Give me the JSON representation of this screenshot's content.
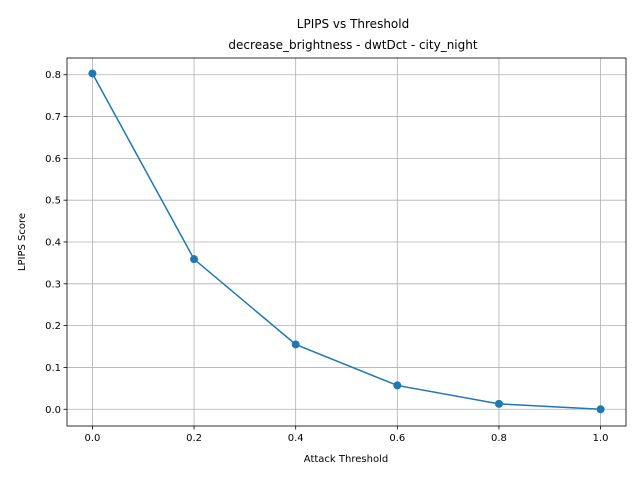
{
  "chart_data": {
    "type": "line",
    "title": "LPIPS vs Threshold",
    "subtitle": "decrease_brightness - dwtDct - city_night",
    "xlabel": "Attack Threshold",
    "ylabel": "LPIPS Score",
    "xlim": [
      -0.05,
      1.05
    ],
    "ylim": [
      -0.04,
      0.84
    ],
    "xticks": [
      0.0,
      0.2,
      0.4,
      0.6,
      0.8,
      1.0
    ],
    "xtick_labels": [
      "0.0",
      "0.2",
      "0.4",
      "0.6",
      "0.8",
      "1.0"
    ],
    "yticks": [
      0.0,
      0.1,
      0.2,
      0.3,
      0.4,
      0.5,
      0.6,
      0.7,
      0.8
    ],
    "ytick_labels": [
      "0.0",
      "0.1",
      "0.2",
      "0.3",
      "0.4",
      "0.5",
      "0.6",
      "0.7",
      "0.8"
    ],
    "grid": true,
    "series": [
      {
        "x": [
          0.0,
          0.2,
          0.4,
          0.6,
          0.8,
          1.0
        ],
        "y": [
          0.803,
          0.359,
          0.155,
          0.057,
          0.013,
          0.0
        ],
        "color": "#1f77b4",
        "marker": "circle"
      }
    ]
  }
}
